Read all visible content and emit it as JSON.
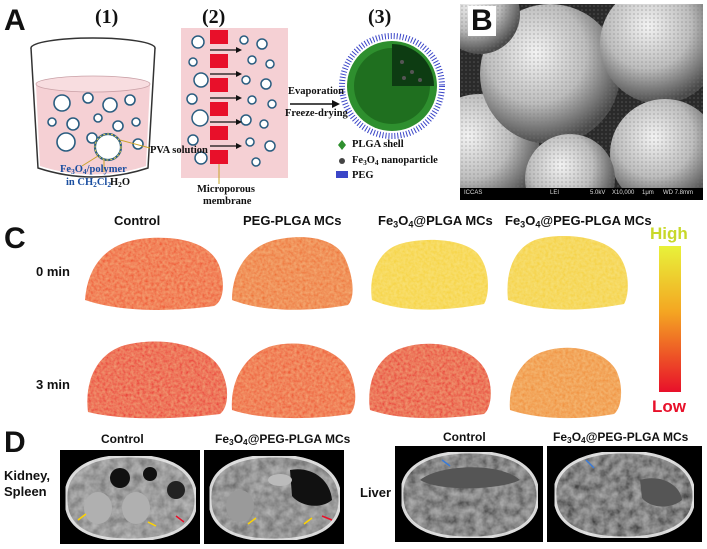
{
  "panelA": {
    "letter": "A",
    "steps": [
      "(1)",
      "(2)",
      "(3)"
    ],
    "pva_solution": "PVA solution",
    "fe3o4_polymer_a": "Fe",
    "fe3o4_polymer_b": "3",
    "fe3o4_polymer_c": "O",
    "fe3o4_polymer_d": "4",
    "fe3o4_polymer_e": "/polymer",
    "solvent_a": "in CH",
    "solvent_b": "2",
    "solvent_c": "Cl",
    "solvent_d": "2",
    "water_a": "H",
    "water_b": "2",
    "water_c": "O",
    "membrane_line1": "Microporous",
    "membrane_line2": "membrane",
    "evaporation": "Evaporation",
    "freeze_drying": "Freeze-drying",
    "legend_plga": "PLGA shell",
    "legend_np_a": "Fe",
    "legend_np_b": "3",
    "legend_np_c": "O",
    "legend_np_d": "4",
    "legend_np_e": " nanoparticle",
    "legend_peg": "PEG"
  },
  "panelB": {
    "letter": "B",
    "sem_org": "ICCAS",
    "sem_mode": "LEI",
    "sem_kv": "5.0kV",
    "sem_mag": "X10,000",
    "sem_scale": "1μm",
    "sem_wd": "WD 7.8mm"
  },
  "panelC": {
    "letter": "C",
    "col1": "Control",
    "col2": "PEG-PLGA MCs",
    "col3_a": "Fe",
    "col3_b": "3",
    "col3_c": "O",
    "col3_d": "4",
    "col3_e": "@PLGA MCs",
    "col4_a": "Fe",
    "col4_b": "3",
    "col4_c": "O",
    "col4_d": "4",
    "col4_e": "@PEG-PLGA MCs",
    "row1": "0 min",
    "row2": "3 min",
    "scale_high": "High",
    "scale_low": "Low",
    "colors": {
      "high": "#e8f23a",
      "mid": "#f4a622",
      "low": "#e8102a"
    }
  },
  "panelD": {
    "letter": "D",
    "control_left": "Control",
    "mcs_left_a": "Fe",
    "mcs_left_b": "3",
    "mcs_left_c": "O",
    "mcs_left_d": "4",
    "mcs_left_e": "@PEG-PLGA MCs",
    "kidney": "Kidney,",
    "spleen": "Spleen",
    "liver": "Liver",
    "control_right": "Control",
    "mcs_right_a": "Fe",
    "mcs_right_b": "3",
    "mcs_right_c": "O",
    "mcs_right_d": "4",
    "mcs_right_e": "@PEG-PLGA MCs"
  }
}
